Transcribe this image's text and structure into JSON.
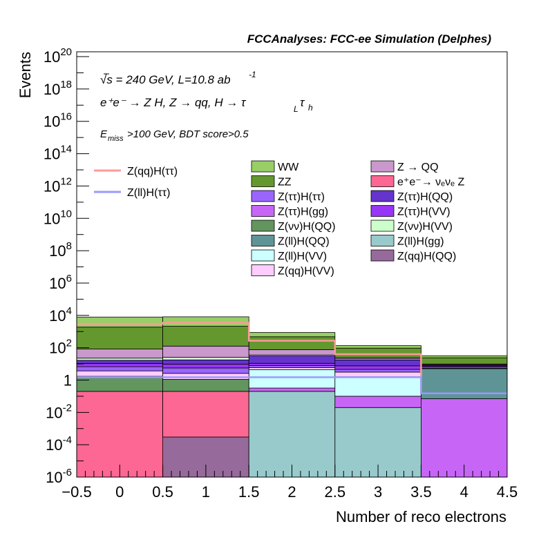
{
  "chart_data": {
    "type": "bar",
    "stacked": true,
    "title": "FCCAnalyses: FCC-ee Simulation (Delphes)",
    "annotations": [
      "√s = 240 GeV, L=10.8 ab",
      "-1",
      "e⁺e⁻ → Z H, Z → qq, H → τ",
      "L",
      "τ",
      "h",
      "E",
      "miss",
      ">100 GeV, BDT score>0.5"
    ],
    "xlabel": "Number of reco electrons",
    "ylabel": "Events",
    "x_bins": [
      -0.5,
      0.5,
      1.5,
      2.5,
      3.5,
      4.5
    ],
    "xticks": [
      "−0.5",
      "0",
      "0.5",
      "1",
      "1.5",
      "2",
      "2.5",
      "3",
      "3.5",
      "4",
      "4.5"
    ],
    "xlim": [
      -0.5,
      4.5
    ],
    "ylim": [
      1e-06,
      2e+20
    ],
    "yscale": "log",
    "yticks": [
      {
        "base": "10",
        "exp": "20",
        "value": 1e+20
      },
      {
        "base": "10",
        "exp": "18",
        "value": 1e+18
      },
      {
        "base": "10",
        "exp": "16",
        "value": 1e+16
      },
      {
        "base": "10",
        "exp": "14",
        "value": 100000000000000.0
      },
      {
        "base": "10",
        "exp": "12",
        "value": 1000000000000.0
      },
      {
        "base": "10",
        "exp": "10",
        "value": 10000000000.0
      },
      {
        "base": "10",
        "exp": "8",
        "value": 100000000.0
      },
      {
        "base": "10",
        "exp": "6",
        "value": 1000000.0
      },
      {
        "base": "10",
        "exp": "4",
        "value": 10000.0
      },
      {
        "base": "10",
        "exp": "2",
        "value": 100.0
      },
      {
        "base": "1",
        "exp": "",
        "value": 1
      },
      {
        "base": "10",
        "exp": "-2",
        "value": 0.01
      },
      {
        "base": "10",
        "exp": "-4",
        "value": 0.0001
      },
      {
        "base": "10",
        "exp": "-6",
        "value": 1e-06
      }
    ],
    "stack_series": [
      {
        "name": "Z(qq)H(QQ)",
        "color": "#966a9b",
        "values": [
          0,
          0.0003,
          0,
          0,
          0
        ]
      },
      {
        "name": "e⁺e⁻→ νₑνₑ Z",
        "color": "#fd6794",
        "values": [
          0.2,
          0.2,
          0,
          0,
          0
        ]
      },
      {
        "name": "Z(ll)H(gg)",
        "color": "#98cacb",
        "values": [
          0,
          0,
          0.2,
          0.02,
          0
        ]
      },
      {
        "name": "Z(ττ)H(gg)",
        "color": "#c766f6",
        "values": [
          0,
          0,
          0.12,
          0.08,
          0.07
        ]
      },
      {
        "name": "Z(νν)H(QQ)",
        "color": "#63955f",
        "values": [
          1.5,
          0.9,
          0,
          0,
          0
        ]
      },
      {
        "name": "Z(ll)H(VV)",
        "color": "#ccffff",
        "values": [
          0,
          0,
          4,
          1.5,
          0
        ]
      },
      {
        "name": "Z(ll)H(QQ)",
        "color": "#5f9497",
        "values": [
          0,
          0,
          0,
          0,
          5
        ]
      },
      {
        "name": "Z(qq)H(VV)",
        "color": "#ffccff",
        "values": [
          2,
          1.5,
          1.5,
          1.5,
          0.3
        ]
      },
      {
        "name": "Z(ττ)H(ττ)",
        "color": "#9a65fe",
        "values": [
          3,
          3,
          2,
          1.5,
          1
        ]
      },
      {
        "name": "Z(ττ)H(VV)",
        "color": "#9835f8",
        "values": [
          4,
          4,
          3,
          3,
          1
        ]
      },
      {
        "name": "Z(ττ)H(QQ)",
        "color": "#6434cd",
        "values": [
          6,
          8,
          20,
          10,
          1
        ]
      },
      {
        "name": "Z(νν)H(VV)",
        "color": "#ccffcc",
        "values": [
          6,
          8,
          5,
          3,
          0.5
        ]
      },
      {
        "name": "Z → QQ",
        "color": "#ca98cc",
        "values": [
          60,
          100,
          40,
          4,
          1
        ]
      },
      {
        "name": "ZZ",
        "color": "#64982f",
        "values": [
          1800,
          2000,
          400,
          70,
          14
        ]
      },
      {
        "name": "WW",
        "color": "#98ce66",
        "values": [
          6000,
          6000,
          400,
          40,
          8
        ]
      }
    ],
    "line_series": [
      {
        "name": "Z(qq)H(ττ)",
        "color": "#ff9999",
        "values": [
          3000,
          3500,
          270,
          40,
          0.15
        ]
      },
      {
        "name": "Z(ll)H(ττ)",
        "color": "#9999ff",
        "values": [
          1.5,
          1.5,
          1.5,
          1.5,
          0.15
        ]
      }
    ],
    "legend_placement": "top-right",
    "grid": false
  }
}
